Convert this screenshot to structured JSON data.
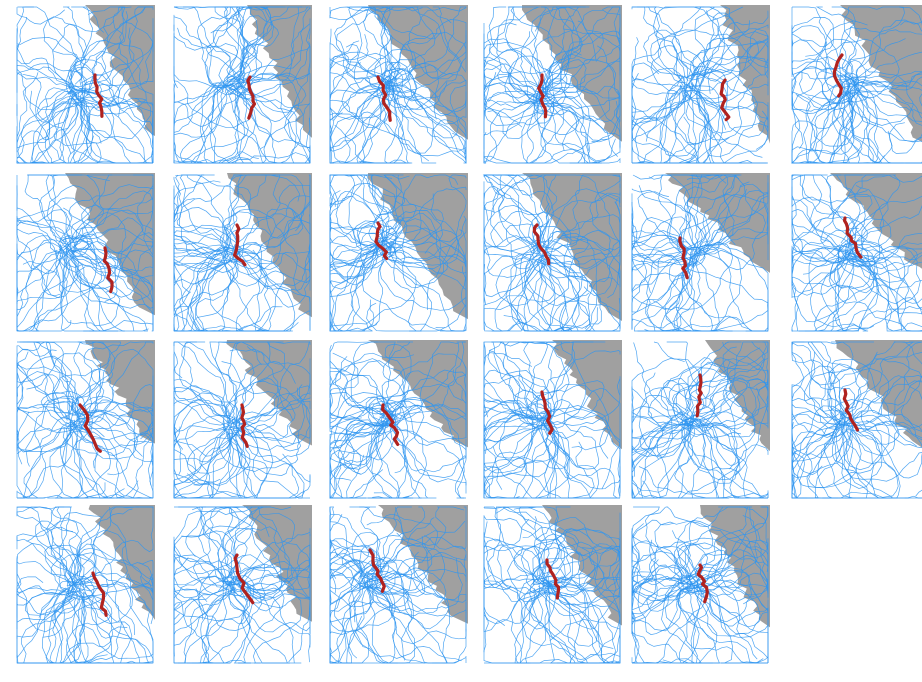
{
  "figure": {
    "rows": 4,
    "columns": 6,
    "panel_count": 23,
    "colors": {
      "background": "#ffffff",
      "land": "#a0a0a0",
      "ensemble_tracks": "#2f95f0",
      "highlight_track": "#b0221f"
    },
    "panels": [
      {
        "id": 1,
        "row": 1,
        "column": 1,
        "land": "coast"
      },
      {
        "id": 2,
        "row": 1,
        "column": 2,
        "land": "coast"
      },
      {
        "id": 3,
        "row": 1,
        "column": 3,
        "land": "coast"
      },
      {
        "id": 4,
        "row": 1,
        "column": 4,
        "land": "coast"
      },
      {
        "id": 5,
        "row": 1,
        "column": 5,
        "land": "coast"
      },
      {
        "id": 6,
        "row": 1,
        "column": 6,
        "land": "coast"
      },
      {
        "id": 7,
        "row": 2,
        "column": 1,
        "land": "coast"
      },
      {
        "id": 8,
        "row": 2,
        "column": 2,
        "land": "coast"
      },
      {
        "id": 9,
        "row": 2,
        "column": 3,
        "land": "coast"
      },
      {
        "id": 10,
        "row": 2,
        "column": 4,
        "land": "coast"
      },
      {
        "id": 11,
        "row": 2,
        "column": 5,
        "land": "coast"
      },
      {
        "id": 12,
        "row": 2,
        "column": 6,
        "land": "coast"
      },
      {
        "id": 13,
        "row": 3,
        "column": 1,
        "land": "coast"
      },
      {
        "id": 14,
        "row": 3,
        "column": 2,
        "land": "coast"
      },
      {
        "id": 15,
        "row": 3,
        "column": 3,
        "land": "coast"
      },
      {
        "id": 16,
        "row": 3,
        "column": 4,
        "land": "coast"
      },
      {
        "id": 17,
        "row": 3,
        "column": 5,
        "land": "coast"
      },
      {
        "id": 18,
        "row": 3,
        "column": 6,
        "land": "coast"
      },
      {
        "id": 19,
        "row": 4,
        "column": 1,
        "land": "coast"
      },
      {
        "id": 20,
        "row": 4,
        "column": 2,
        "land": "coast"
      },
      {
        "id": 21,
        "row": 4,
        "column": 3,
        "land": "coast"
      },
      {
        "id": 22,
        "row": 4,
        "column": 4,
        "land": "coast"
      },
      {
        "id": 23,
        "row": 4,
        "column": 5,
        "land": "coast"
      }
    ]
  }
}
